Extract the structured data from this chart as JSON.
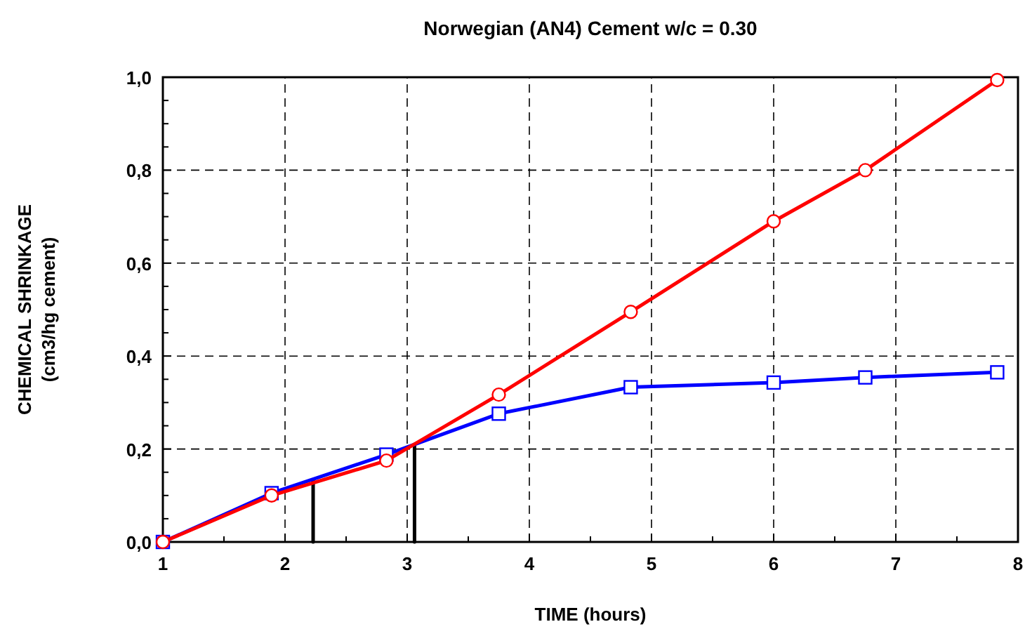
{
  "chart_data": {
    "type": "line",
    "title": "Norwegian (AN4) Cement w/c = 0.30",
    "xlabel": "TIME (hours)",
    "ylabel": "CHEMICAL SHRINKAGE\n(cm3/hg cement)",
    "xlim": [
      1,
      8
    ],
    "ylim": [
      0,
      1
    ],
    "xticks": [
      1,
      {
        "value": 1.5,
        "label": null
      },
      2,
      {
        "value": 2.5,
        "label": null
      },
      3,
      {
        "value": 3.5,
        "label": null
      },
      4,
      {
        "value": 4.5,
        "label": null
      },
      5,
      {
        "value": 5.5,
        "label": null
      },
      6,
      {
        "value": 6.5,
        "label": null
      },
      7,
      {
        "value": 7.5,
        "label": null
      },
      8
    ],
    "yticks": [
      {
        "value": 0,
        "label": "0,0"
      },
      {
        "value": 0.05,
        "label": null
      },
      {
        "value": 0.1,
        "label": null
      },
      {
        "value": 0.15,
        "label": null
      },
      {
        "value": 0.2,
        "label": "0,2"
      },
      {
        "value": 0.25,
        "label": null
      },
      {
        "value": 0.3,
        "label": null
      },
      {
        "value": 0.35,
        "label": null
      },
      {
        "value": 0.4,
        "label": "0,4"
      },
      {
        "value": 0.45,
        "label": null
      },
      {
        "value": 0.5,
        "label": null
      },
      {
        "value": 0.55,
        "label": null
      },
      {
        "value": 0.6,
        "label": "0,6"
      },
      {
        "value": 0.65,
        "label": null
      },
      {
        "value": 0.7,
        "label": null
      },
      {
        "value": 0.75,
        "label": null
      },
      {
        "value": 0.8,
        "label": "0,8"
      },
      {
        "value": 0.85,
        "label": null
      },
      {
        "value": 0.9,
        "label": null
      },
      {
        "value": 0.95,
        "label": null
      },
      {
        "value": 1,
        "label": "1,0"
      }
    ],
    "grid": true,
    "line_style": "solid",
    "series": [
      {
        "color": "#ff0000",
        "marker": "circle",
        "x": [
          1,
          1.89,
          2.83,
          3.75,
          4.83,
          6.0,
          6.75,
          7.83
        ],
        "values": [
          0,
          0.1,
          0.175,
          0.317,
          0.495,
          0.69,
          0.8,
          0.994
        ]
      },
      {
        "color": "#0000ff",
        "marker": "square",
        "x": [
          1,
          1.89,
          2.83,
          3.75,
          4.83,
          6.0,
          6.75,
          7.83
        ],
        "values": [
          0,
          0.105,
          0.188,
          0.276,
          0.333,
          0.343,
          0.354,
          0.365
        ]
      },
      {
        "color": "#000000",
        "marker": "none",
        "x": [
          2.23,
          2.23
        ],
        "values": [
          0,
          0.134
        ]
      },
      {
        "color": "#000000",
        "marker": "none",
        "x": [
          3.06,
          3.06
        ],
        "values": [
          0,
          0.21
        ]
      }
    ]
  }
}
